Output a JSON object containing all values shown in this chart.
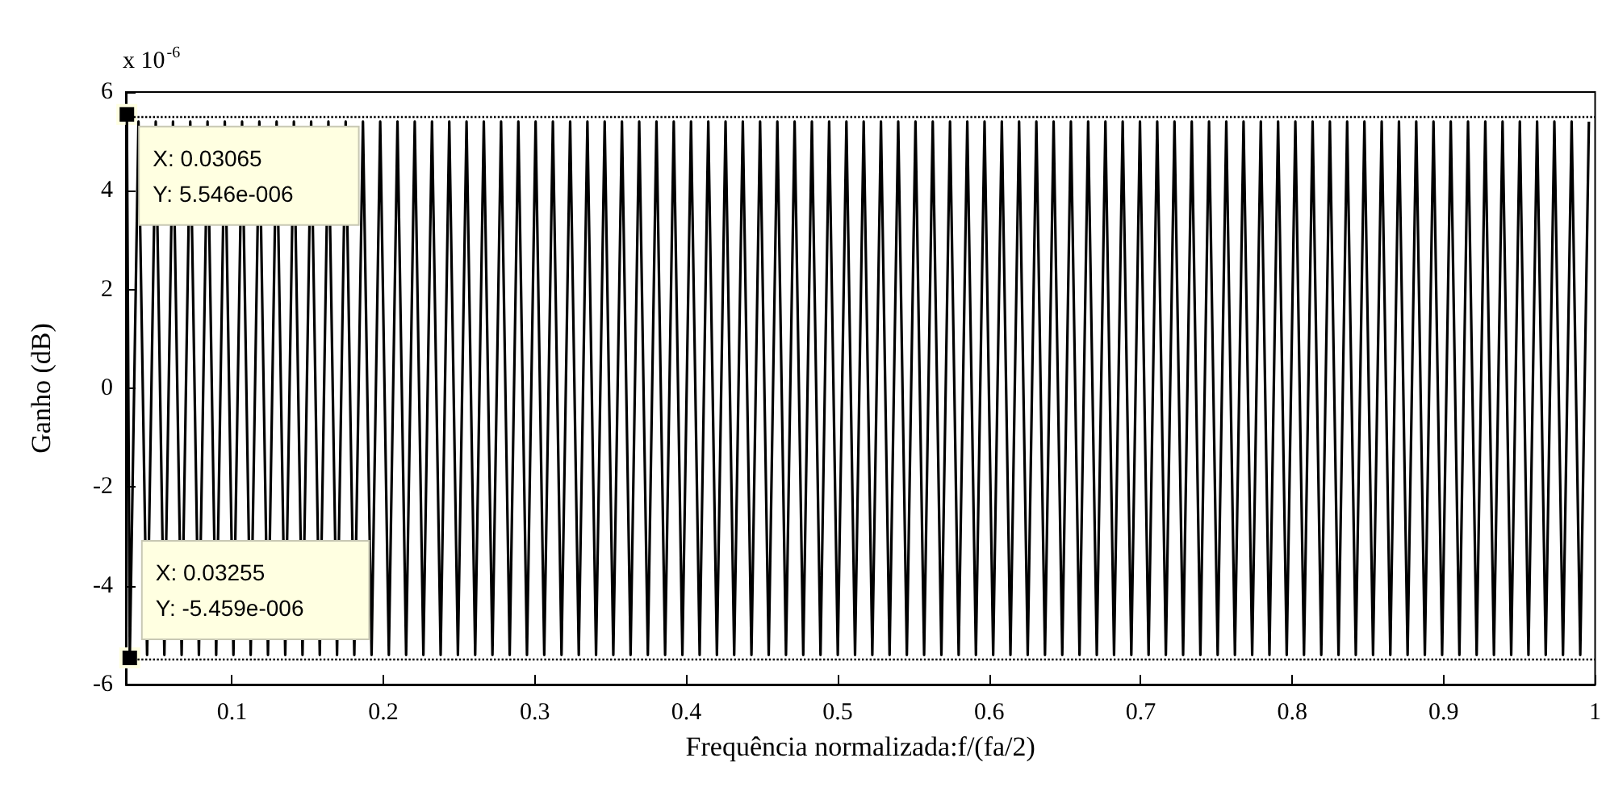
{
  "chart_data": {
    "type": "line",
    "xlabel": "Frequência normalizada:f/(fa/2)",
    "ylabel": "Ganho (dB)",
    "annotations": [
      "x 10$^{-6}$",
      {
        "text": "X: 0.03065\nY: 5.546e-006",
        "x": 0.03065,
        "y": 5.546
      },
      {
        "text": "X: 0.03255\nY: -5.459e-006",
        "x": 0.03255,
        "y": -5.459
      }
    ],
    "xlim": [
      0.03,
      1
    ],
    "xticks": [
      0.1,
      0.2,
      0.3,
      0.4,
      0.5,
      0.6,
      0.7,
      0.8,
      0.9,
      1
    ],
    "ylim": [
      -6,
      6
    ],
    "yticks": [
      -6,
      -4,
      -2,
      0,
      2,
      4,
      6
    ],
    "grid": false,
    "marker": "none",
    "line_style": "solid",
    "ref_lines": [
      {
        "axis": "y",
        "value": 5.5,
        "color": "#000000",
        "line_style": "dotted"
      },
      {
        "axis": "y",
        "value": -5.5,
        "color": "#000000",
        "line_style": "dotted"
      }
    ],
    "series": [
      {
        "color": "#000000",
        "x": [
          0.03065,
          0.03255,
          0.0383,
          0.044,
          0.0497,
          0.0554,
          0.0611,
          0.0668,
          0.0725,
          0.0782,
          0.0839,
          0.0896,
          0.0953,
          0.101,
          0.1067,
          0.1124,
          0.1181,
          0.1238,
          0.1295,
          0.1352,
          0.1409,
          0.1466,
          0.1523,
          0.158,
          0.1637,
          0.1694,
          0.1751,
          0.1808,
          0.1865,
          0.1922,
          0.1979,
          0.2036,
          0.2093,
          0.215,
          0.2207,
          0.2264,
          0.2321,
          0.2378,
          0.2435,
          0.2492,
          0.2549,
          0.2606,
          0.2663,
          0.272,
          0.2777,
          0.2834,
          0.2891,
          0.2948,
          0.3005,
          0.3062,
          0.3119,
          0.3176,
          0.3233,
          0.329,
          0.3347,
          0.3404,
          0.3461,
          0.3518,
          0.3575,
          0.3632,
          0.3689,
          0.3746,
          0.3803,
          0.386,
          0.3917,
          0.3974,
          0.4031,
          0.4088,
          0.4145,
          0.4202,
          0.4259,
          0.4316,
          0.4373,
          0.443,
          0.4487,
          0.4544,
          0.4601,
          0.4658,
          0.4715,
          0.4772,
          0.4829,
          0.4886,
          0.4943,
          0.5,
          0.5057,
          0.5114,
          0.5171,
          0.5228,
          0.5285,
          0.5342,
          0.5399,
          0.5456,
          0.5513,
          0.557,
          0.5627,
          0.5684,
          0.5741,
          0.5798,
          0.5855,
          0.5912,
          0.5969,
          0.6026,
          0.6083,
          0.614,
          0.6197,
          0.6254,
          0.6311,
          0.6368,
          0.6425,
          0.6482,
          0.6539,
          0.6596,
          0.6653,
          0.671,
          0.6767,
          0.6824,
          0.6881,
          0.6938,
          0.6995,
          0.7052,
          0.7109,
          0.7166,
          0.7223,
          0.728,
          0.7337,
          0.7394,
          0.7451,
          0.7508,
          0.7565,
          0.7622,
          0.7679,
          0.7736,
          0.7793,
          0.785,
          0.7907,
          0.7964,
          0.8021,
          0.8078,
          0.8135,
          0.8192,
          0.8249,
          0.8306,
          0.8363,
          0.842,
          0.8477,
          0.8534,
          0.8591,
          0.8648,
          0.8705,
          0.8762,
          0.8819,
          0.8876,
          0.8933,
          0.899,
          0.9047,
          0.9104,
          0.9161,
          0.9218,
          0.9275,
          0.9332,
          0.9389,
          0.9446,
          0.9503,
          0.956,
          0.9617,
          0.9674,
          0.9731,
          0.9788,
          0.9845,
          0.9902,
          0.9959
        ],
        "values": [
          5.5,
          -5.5,
          5.4,
          -5.4,
          5.4,
          -5.4,
          5.4,
          -5.4,
          5.4,
          -5.4,
          5.4,
          -5.4,
          5.4,
          -5.4,
          5.4,
          -5.4,
          5.4,
          -5.4,
          5.4,
          -5.4,
          5.4,
          -5.4,
          5.4,
          -5.4,
          5.4,
          -5.4,
          5.4,
          -5.4,
          5.4,
          -5.4,
          5.4,
          -5.4,
          5.4,
          -5.4,
          5.4,
          -5.4,
          5.4,
          -5.4,
          5.4,
          -5.4,
          5.4,
          -5.4,
          5.4,
          -5.4,
          5.4,
          -5.4,
          5.4,
          -5.4,
          5.4,
          -5.4,
          5.4,
          -5.4,
          5.4,
          -5.4,
          5.4,
          -5.4,
          5.4,
          -5.4,
          5.4,
          -5.4,
          5.4,
          -5.4,
          5.4,
          -5.4,
          5.4,
          -5.4,
          5.4,
          -5.4,
          5.4,
          -5.4,
          5.4,
          -5.4,
          5.4,
          -5.4,
          5.4,
          -5.4,
          5.4,
          -5.4,
          5.4,
          -5.4,
          5.4,
          -5.4,
          5.4,
          -5.4,
          5.4,
          -5.4,
          5.4,
          -5.4,
          5.4,
          -5.4,
          5.4,
          -5.4,
          5.4,
          -5.4,
          5.4,
          -5.4,
          5.4,
          -5.4,
          5.4,
          -5.4,
          5.4,
          -5.4,
          5.4,
          -5.4,
          5.4,
          -5.4,
          5.4,
          -5.4,
          5.4,
          -5.4,
          5.4,
          -5.4,
          5.4,
          -5.4,
          5.4,
          -5.4,
          5.4,
          -5.4,
          5.4,
          -5.4,
          5.4,
          -5.4,
          5.4,
          -5.4,
          5.4,
          -5.4,
          5.4,
          -5.4,
          5.4,
          -5.4,
          5.4,
          -5.4,
          5.4,
          -5.4,
          5.4,
          -5.4,
          5.4,
          -5.4,
          5.4,
          -5.4,
          5.4,
          -5.4,
          5.4,
          -5.4,
          5.4,
          -5.4,
          5.4,
          -5.4,
          5.4,
          -5.4,
          5.4,
          -5.4,
          5.4,
          -5.4,
          5.4,
          -5.4,
          5.4,
          -5.4,
          5.4,
          -5.4,
          5.4,
          -5.4,
          5.4,
          -5.4,
          5.4,
          -5.4,
          5.4,
          -5.4,
          5.4,
          -5.4,
          5.4
        ]
      }
    ]
  }
}
